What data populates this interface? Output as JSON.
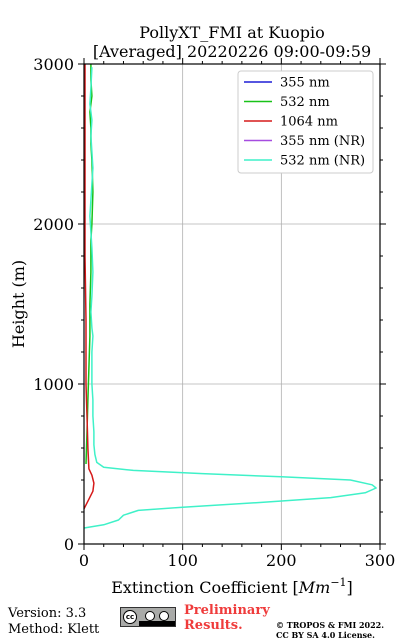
{
  "chart_data": {
    "type": "line",
    "title": "PollyXT_FMI at Kuopio",
    "subtitle": "[Averaged] 20220226 09:00-09:59",
    "xlabel": "Extinction Coefficient [Mm⁻¹]",
    "ylabel": "Height (m)",
    "xlim": [
      0,
      300
    ],
    "ylim": [
      0,
      3000
    ],
    "x_ticks": [
      0,
      100,
      200,
      300
    ],
    "y_ticks": [
      0,
      1000,
      2000,
      3000
    ],
    "grid": true,
    "legend_position": "top-right",
    "series": [
      {
        "name": "355 nm",
        "color": "#1f1fd6",
        "x": [],
        "y": []
      },
      {
        "name": "532 nm",
        "color": "#19c219",
        "x": [
          2,
          3,
          4,
          5,
          6,
          6,
          7,
          7,
          8,
          9,
          8,
          7,
          7,
          6,
          8,
          7,
          7
        ],
        "y": [
          500,
          700,
          900,
          1100,
          1300,
          1500,
          1700,
          1900,
          2000,
          2200,
          2400,
          2500,
          2600,
          2700,
          2800,
          2900,
          3000
        ]
      },
      {
        "name": "1064 nm",
        "color": "#d61a1a",
        "x": [
          0,
          5,
          9,
          10,
          8,
          5,
          4,
          3,
          2,
          2,
          1,
          1,
          1,
          1,
          1
        ],
        "y": [
          220,
          280,
          330,
          380,
          430,
          470,
          600,
          800,
          1000,
          1400,
          1800,
          2200,
          2600,
          2800,
          3000
        ]
      },
      {
        "name": "355 nm (NR)",
        "color": "#a64ce0",
        "x": [],
        "y": []
      },
      {
        "name": "532 nm (NR)",
        "color": "#3ff1c8",
        "x": [
          0,
          20,
          35,
          40,
          55,
          100,
          180,
          250,
          285,
          296,
          292,
          270,
          200,
          120,
          50,
          20,
          13,
          11,
          10,
          10,
          9,
          9,
          8,
          8,
          8,
          9,
          8,
          7,
          8,
          9,
          8,
          7,
          6,
          7,
          8,
          9,
          8,
          7,
          8,
          6,
          7,
          8
        ],
        "y": [
          100,
          120,
          150,
          180,
          210,
          230,
          260,
          290,
          320,
          350,
          370,
          400,
          420,
          440,
          460,
          480,
          510,
          560,
          620,
          700,
          800,
          900,
          1000,
          1100,
          1200,
          1300,
          1350,
          1450,
          1550,
          1700,
          1850,
          1950,
          2050,
          2150,
          2250,
          2350,
          2450,
          2550,
          2650,
          2750,
          2850,
          2980
        ]
      }
    ]
  },
  "footer": {
    "version": "Version: 3.3",
    "method": "Method: Klett",
    "preliminary_line1": "Preliminary",
    "preliminary_line2": "Results.",
    "copyright_line1": "© TROPOS & FMI 2022.",
    "copyright_line2": "CC BY SA 4.0 License."
  }
}
